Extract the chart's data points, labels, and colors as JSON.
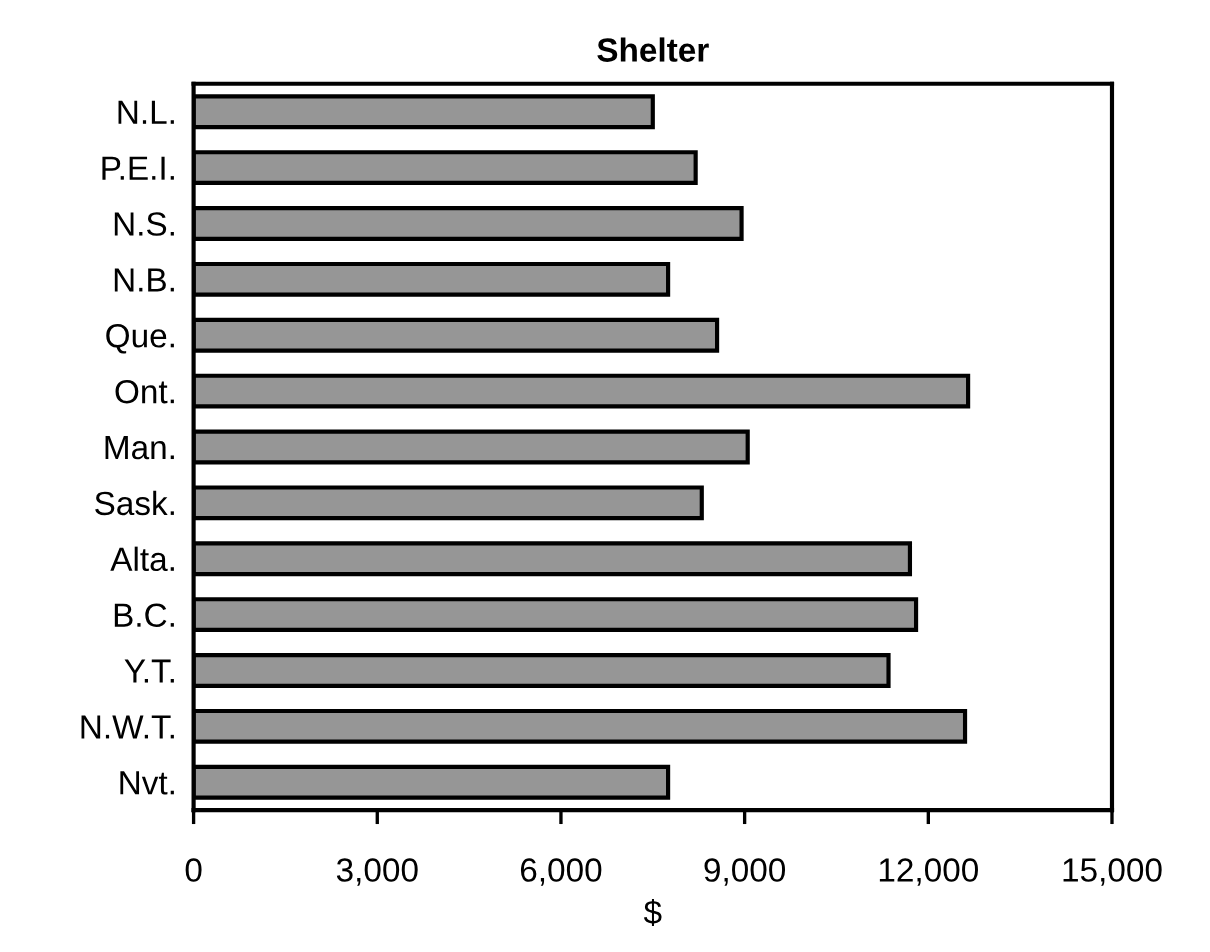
{
  "chart_data": {
    "type": "bar",
    "orientation": "horizontal",
    "title": "Shelter",
    "xlabel": "$",
    "categories": [
      "N.L.",
      "P.E.I.",
      "N.S.",
      "N.B.",
      "Que.",
      "Ont.",
      "Man.",
      "Sask.",
      "Alta.",
      "B.C.",
      "Y.T.",
      "N.W.T.",
      "Nvt."
    ],
    "values": [
      7500,
      8200,
      8950,
      7750,
      8550,
      12650,
      9050,
      8300,
      11700,
      11800,
      11350,
      12600,
      7750
    ],
    "color": "#969696",
    "xlim": [
      0,
      15000
    ],
    "xticks": [
      {
        "value": 0,
        "label": "0"
      },
      {
        "value": 3000,
        "label": "3,000"
      },
      {
        "value": 6000,
        "label": "6,000"
      },
      {
        "value": 9000,
        "label": "9,000"
      },
      {
        "value": 12000,
        "label": "12,000"
      },
      {
        "value": 15000,
        "label": "15,000"
      }
    ],
    "grid": false,
    "legend": false
  }
}
